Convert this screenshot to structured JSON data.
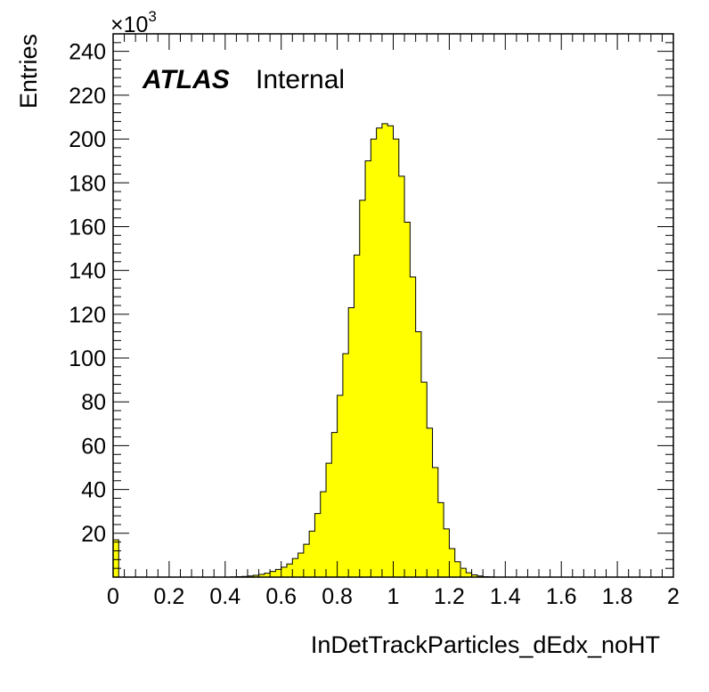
{
  "chart_data": {
    "type": "bar",
    "subtype": "histogram",
    "title": "",
    "experiment_label": "ATLAS",
    "status_label": "Internal",
    "xlabel": "InDetTrackParticles_dEdx_noHT",
    "ylabel": "Entries",
    "y_exponent_label": "×10",
    "y_exponent_power": "3",
    "y_scale_factor": 1000,
    "xlim": [
      0,
      2
    ],
    "ylim": [
      0,
      248000
    ],
    "x_ticks": [
      "0",
      "0.2",
      "0.4",
      "0.6",
      "0.8",
      "1",
      "1.2",
      "1.4",
      "1.6",
      "1.8",
      "2"
    ],
    "x_tick_values": [
      0,
      0.2,
      0.4,
      0.6,
      0.8,
      1.0,
      1.2,
      1.4,
      1.6,
      1.8,
      2.0
    ],
    "y_ticks": [
      "20",
      "40",
      "60",
      "80",
      "100",
      "120",
      "140",
      "160",
      "180",
      "200",
      "220",
      "240"
    ],
    "y_tick_values": [
      20000,
      40000,
      60000,
      80000,
      100000,
      120000,
      140000,
      160000,
      180000,
      200000,
      220000,
      240000
    ],
    "bin_width": 0.02,
    "bin_edges_start": 0,
    "values": [
      17000,
      0,
      0,
      0,
      0,
      0,
      0,
      0,
      0,
      0,
      0,
      0,
      0,
      0,
      0,
      0,
      0,
      0,
      0,
      0,
      0,
      100,
      200,
      300,
      500,
      800,
      1200,
      1800,
      2600,
      3500,
      4500,
      6000,
      8500,
      11000,
      15000,
      21000,
      29000,
      39000,
      52000,
      66000,
      83000,
      102000,
      123000,
      147000,
      172000,
      190000,
      200000,
      205000,
      207000,
      206000,
      200000,
      183000,
      162000,
      137000,
      112000,
      89000,
      68000,
      50000,
      34000,
      22000,
      13000,
      7000,
      4000,
      2000,
      1000,
      500,
      200,
      100,
      0,
      0,
      0,
      0,
      0,
      0,
      0,
      0,
      0,
      0,
      0,
      0,
      0,
      0,
      0,
      0,
      0,
      0,
      0,
      0,
      0,
      0,
      0,
      0,
      0,
      0,
      0,
      0,
      0,
      0,
      0,
      0
    ],
    "fill_color": "#ffff00",
    "line_color": "#000000",
    "grid": false,
    "legend": "none"
  }
}
